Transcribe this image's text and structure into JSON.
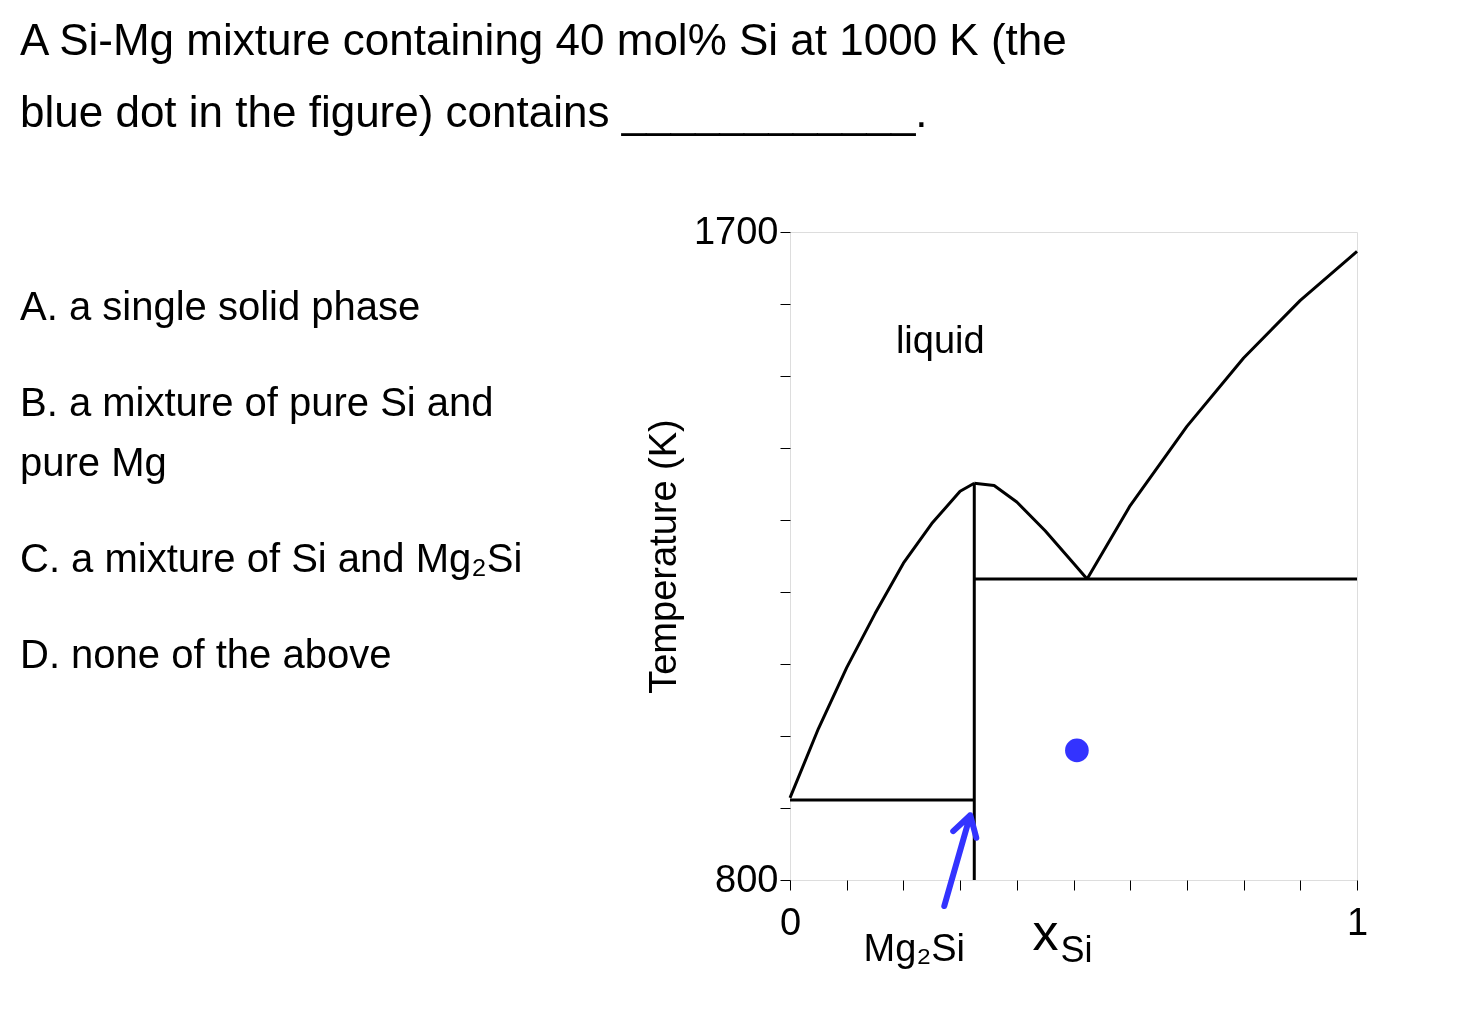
{
  "chart_data": {
    "type": "line",
    "title": "A Si-Mg mixture containing 40 mol% Si at 1000 K (the blue dot in the figure) contains ____________.",
    "xlabel": "x$_{Si}$",
    "ylabel": "Temperature (K)",
    "xlim": [
      0,
      1
    ],
    "ylim": [
      800,
      1700
    ],
    "xticks": [
      0,
      {
        "value": 0.1,
        "label": null
      },
      {
        "value": 0.2,
        "label": null
      },
      {
        "value": 0.3,
        "label": null
      },
      {
        "value": 0.4,
        "label": null
      },
      {
        "value": 0.5,
        "label": null
      },
      {
        "value": 0.6,
        "label": null
      },
      {
        "value": 0.7,
        "label": null
      },
      {
        "value": 0.8,
        "label": null
      },
      {
        "value": 0.9,
        "label": null
      },
      1
    ],
    "yticks": [
      800,
      {
        "value": 900,
        "label": null
      },
      {
        "value": 1000,
        "label": null
      },
      {
        "value": 1100,
        "label": null
      },
      {
        "value": 1200,
        "label": null
      },
      {
        "value": 1300,
        "label": null
      },
      {
        "value": 1400,
        "label": null
      },
      {
        "value": 1500,
        "label": null
      },
      {
        "value": 1600,
        "label": null
      },
      1700
    ],
    "grid": false,
    "marker": "none",
    "line_style": "solid",
    "series": [
      {
        "color": "#000000",
        "x": [
          0,
          0.05,
          0.1,
          0.15,
          0.2,
          0.25,
          0.3,
          0.325
        ],
        "values": [
          914,
          1010,
          1095,
          1170,
          1240,
          1295,
          1340,
          1351
        ]
      },
      {
        "color": "#000000",
        "x": [
          0.325,
          0.36,
          0.4,
          0.45,
          0.5,
          0.524
        ],
        "values": [
          1351,
          1348,
          1325,
          1285,
          1240,
          1218
        ]
      },
      {
        "color": "#000000",
        "x": [
          0.524,
          0.6,
          0.7,
          0.8,
          0.9,
          1
        ],
        "values": [
          1218,
          1320,
          1430,
          1525,
          1605,
          1673
        ]
      },
      {
        "color": "#000000",
        "x": [
          0.325,
          1
        ],
        "values": [
          1218,
          1218
        ]
      },
      {
        "color": "#000000",
        "x": [
          0,
          0.325
        ],
        "values": [
          911,
          911
        ]
      },
      {
        "color": "#000000",
        "x": [
          0.325,
          0.325
        ],
        "values": [
          800,
          1351
        ]
      },
      {
        "type": "scatter",
        "color": "#3333ff",
        "marker": "circle",
        "x": [
          0.506
        ],
        "values": [
          980
        ]
      }
    ],
    "annotations": [
      "A.  a single solid phase",
      "B.  a mixture of pure Si and pure Mg",
      "C.  a mixture of Si and Mg₂Si",
      "D.  none of the above",
      "liquid",
      {
        "text": "Mg₂Si",
        "x": 0.325,
        "y": 890
      }
    ]
  }
}
